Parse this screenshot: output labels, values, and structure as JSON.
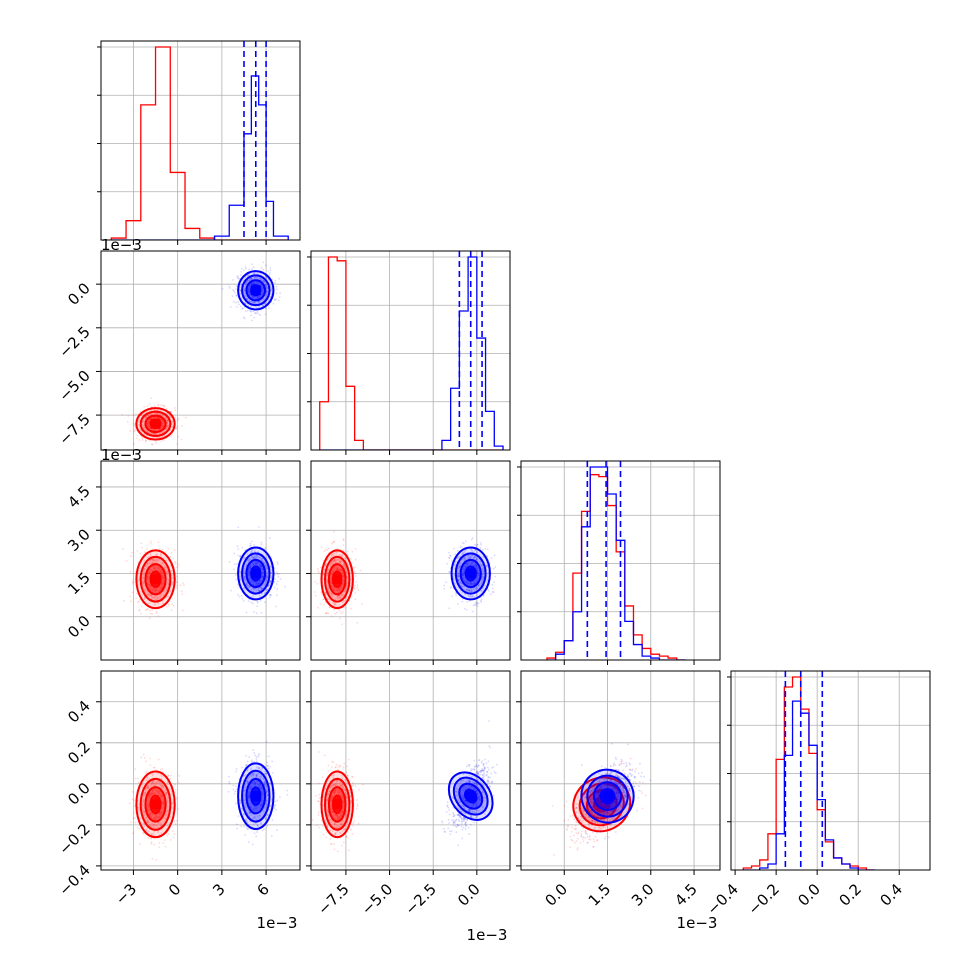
{
  "chart_data": {
    "type": "corner",
    "grid": true,
    "colors": {
      "red": "#ff0000",
      "blue": "#0000ff",
      "grid": "#b0b0b0"
    },
    "parameters": [
      {
        "range": [
          -5.2,
          8.3
        ],
        "ticks": [
          -3,
          0,
          3,
          6
        ],
        "tick_labels": [
          "−3",
          "0",
          "3",
          "6"
        ],
        "offset": "1e−3",
        "quantiles_blue": [
          4.5,
          5.3,
          6.0
        ],
        "hist": {
          "edges": [
            -4.5,
            -3.5,
            -2.5,
            -1.5,
            -0.5,
            0.5,
            1.5,
            2.5,
            3.5,
            4.5,
            5.0,
            5.5,
            6.0,
            6.5,
            7.5
          ],
          "red": [
            0.01,
            0.1,
            0.7,
            1.0,
            0.35,
            0.06,
            0.01,
            0.0,
            0.0,
            0.0,
            0.0,
            0.0,
            0.0,
            0.0
          ],
          "blue": [
            0.0,
            0.0,
            0.0,
            0.0,
            0.0,
            0.0,
            0.0,
            0.02,
            0.18,
            0.55,
            0.85,
            0.7,
            0.2,
            0.02
          ]
        }
      },
      {
        "range": [
          -9.5,
          1.9
        ],
        "ticks": [
          -7.5,
          -5.0,
          -2.5,
          0.0
        ],
        "tick_labels": [
          "−7.5",
          "−5.0",
          "−2.5",
          "0.0"
        ],
        "offset": "1e−3",
        "quantiles_blue": [
          -1.0,
          -0.35,
          0.3
        ],
        "hist": {
          "edges": [
            -9.0,
            -8.5,
            -8.0,
            -7.5,
            -7.0,
            -6.5,
            -6.0,
            -2.0,
            -1.5,
            -1.0,
            -0.5,
            0.0,
            0.5,
            1.0,
            1.5
          ],
          "red": [
            0.25,
            1.0,
            0.98,
            0.33,
            0.05,
            0.0,
            0.0,
            0.0,
            0.0,
            0.0,
            0.0,
            0.0,
            0.0,
            0.0
          ],
          "blue": [
            0.0,
            0.0,
            0.0,
            0.0,
            0.0,
            0.0,
            0.0,
            0.05,
            0.32,
            0.72,
            1.0,
            0.58,
            0.2,
            0.02
          ]
        }
      },
      {
        "range": [
          -1.5,
          5.4
        ],
        "ticks": [
          0.0,
          1.5,
          3.0,
          4.5
        ],
        "tick_labels": [
          "0.0",
          "1.5",
          "3.0",
          "4.5"
        ],
        "offset": "1e−3",
        "quantiles_blue": [
          0.8,
          1.45,
          1.95
        ],
        "hist": {
          "edges": [
            -0.6,
            -0.3,
            0.0,
            0.3,
            0.6,
            0.9,
            1.2,
            1.5,
            1.8,
            2.1,
            2.4,
            2.7,
            3.0,
            3.3,
            3.6,
            3.9,
            4.2
          ],
          "red": [
            0.01,
            0.04,
            0.1,
            0.45,
            0.77,
            0.96,
            0.95,
            0.8,
            0.56,
            0.28,
            0.13,
            0.06,
            0.03,
            0.02,
            0.01,
            0.0
          ],
          "blue": [
            0.0,
            0.03,
            0.1,
            0.25,
            0.69,
            1.0,
            1.0,
            0.86,
            0.62,
            0.2,
            0.08,
            0.02,
            0.01,
            0.0,
            0.0,
            0.0
          ]
        }
      },
      {
        "range": [
          -0.42,
          0.55
        ],
        "ticks": [
          -0.4,
          -0.2,
          0.0,
          0.2,
          0.4
        ],
        "tick_labels": [
          "−0.4",
          "−0.2",
          "0.0",
          "0.2",
          "0.4"
        ],
        "offset": "",
        "quantiles_blue": [
          -0.155,
          -0.08,
          0.025
        ],
        "hist": {
          "edges": [
            -0.36,
            -0.32,
            -0.28,
            -0.24,
            -0.2,
            -0.16,
            -0.12,
            -0.08,
            -0.04,
            0.0,
            0.04,
            0.08,
            0.12,
            0.16,
            0.2,
            0.24,
            0.28
          ],
          "red": [
            0.01,
            0.02,
            0.05,
            0.18,
            0.55,
            0.91,
            0.96,
            0.8,
            0.58,
            0.3,
            0.14,
            0.06,
            0.03,
            0.02,
            0.01,
            0.0
          ],
          "blue": [
            0.0,
            0.0,
            0.01,
            0.03,
            0.18,
            0.57,
            0.84,
            0.78,
            0.62,
            0.35,
            0.15,
            0.06,
            0.03,
            0.01,
            0.0,
            0.0
          ]
        }
      }
    ],
    "populations": {
      "red": {
        "mean": [
          -1.5,
          -8.0,
          1.3,
          -0.1
        ],
        "std": [
          0.65,
          0.45,
          0.5,
          0.08
        ]
      },
      "blue": {
        "mean": [
          5.3,
          -0.35,
          1.5,
          -0.06
        ],
        "std": [
          0.6,
          0.55,
          0.45,
          0.08
        ]
      }
    }
  }
}
